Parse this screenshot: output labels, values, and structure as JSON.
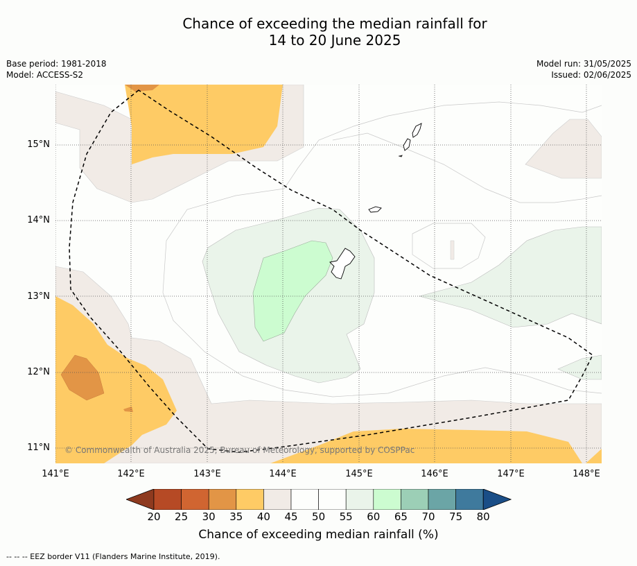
{
  "title": {
    "line1": "Chance of exceeding the median rainfall for",
    "line2": "14 to 20 June 2025"
  },
  "meta": {
    "base_period": "Base period: 1981-2018",
    "model": "Model: ACCESS-S2",
    "model_run": "Model run: 31/05/2025",
    "issued": "Issued: 02/06/2025"
  },
  "map": {
    "lat_labels": [
      "15°N",
      "14°N",
      "13°N",
      "12°N",
      "11°N"
    ],
    "lon_labels": [
      "141°E",
      "142°E",
      "143°E",
      "144°E",
      "145°E",
      "146°E",
      "147°E",
      "148°E"
    ],
    "copyright": "© Commonwealth of Australia 2025, Bureau of Meteorology, supported by COSPPac"
  },
  "colorbar": {
    "ticks": [
      "20",
      "25",
      "30",
      "35",
      "40",
      "45",
      "50",
      "55",
      "60",
      "65",
      "70",
      "75",
      "80"
    ],
    "colors": {
      "below_20": "#8e3a1f",
      "20-25": "#b64a25",
      "25-30": "#d06531",
      "30-35": "#e29546",
      "35-40": "#fecb65",
      "40-45": "#f1ebe6",
      "45-50": "#fdfefc",
      "50-55": "#fdfefc",
      "55-60": "#eaf4ea",
      "60-65": "#ccfcd0",
      "65-70": "#9ccfb6",
      "70-75": "#6ba5a6",
      "75-80": "#3f7a9d",
      "above_80": "#1a4e87"
    },
    "label": "Chance of exceeding median rainfall (%)"
  },
  "footnote": "--  --  -- EEZ border V11 (Flanders Marine Institute, 2019)."
}
